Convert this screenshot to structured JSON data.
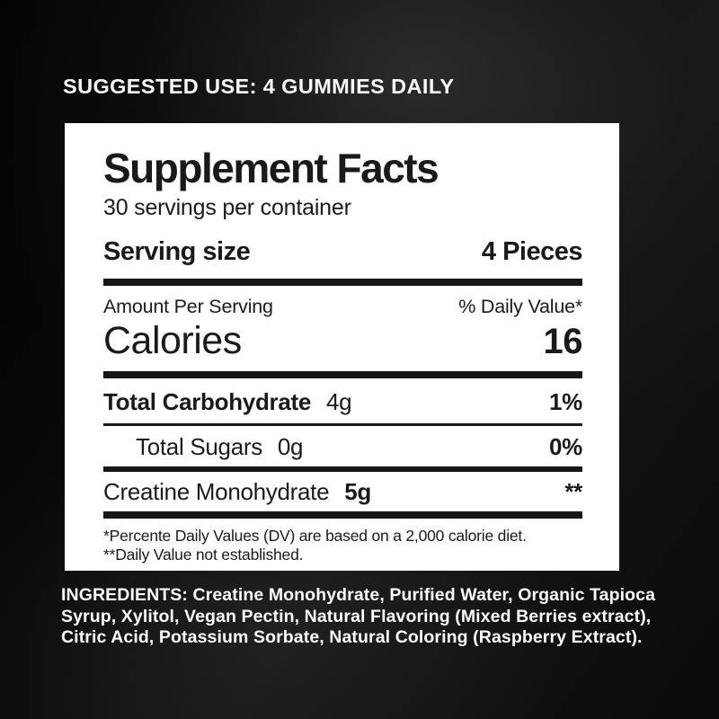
{
  "colors": {
    "background": "#0b0b0b",
    "background_highlight": "#2e2e2e",
    "panel": "#ffffff",
    "ink": "#1a1a1a",
    "headline_text": "#f7f7f7"
  },
  "suggested_use": "SUGGESTED USE: 4 GUMMIES DAILY",
  "label": {
    "title": "Supplement Facts",
    "servings_per_container": "30 servings per container",
    "serving_size": {
      "label": "Serving size",
      "value": "4 Pieces"
    },
    "column_headers": {
      "left": "Amount Per Serving",
      "right": "% Daily Value*"
    },
    "calories": {
      "label": "Calories",
      "value": "16"
    },
    "carb_row": {
      "name": "Total Carbohydrate",
      "amount": "4g",
      "dv": "1%"
    },
    "sugars_row": {
      "name": "Total Sugars",
      "amount": "0g",
      "dv": "0%"
    },
    "creatine_row": {
      "name": "Creatine Monohydrate",
      "amount": "5g",
      "dv": "**"
    },
    "footnotes": {
      "line1": "*Percente Daily Values (DV) are based on a 2,000 calorie diet.",
      "line2": "**Daily Value not established."
    }
  },
  "ingredients": "INGREDIENTS: Creatine Monohydrate, Purified Water, Organic Tapioca Syrup, Xylitol, Vegan Pectin, Natural Flavoring (Mixed Berries extract), Citric Acid, Potassium Sorbate, Natural Coloring (Raspberry Extract)."
}
